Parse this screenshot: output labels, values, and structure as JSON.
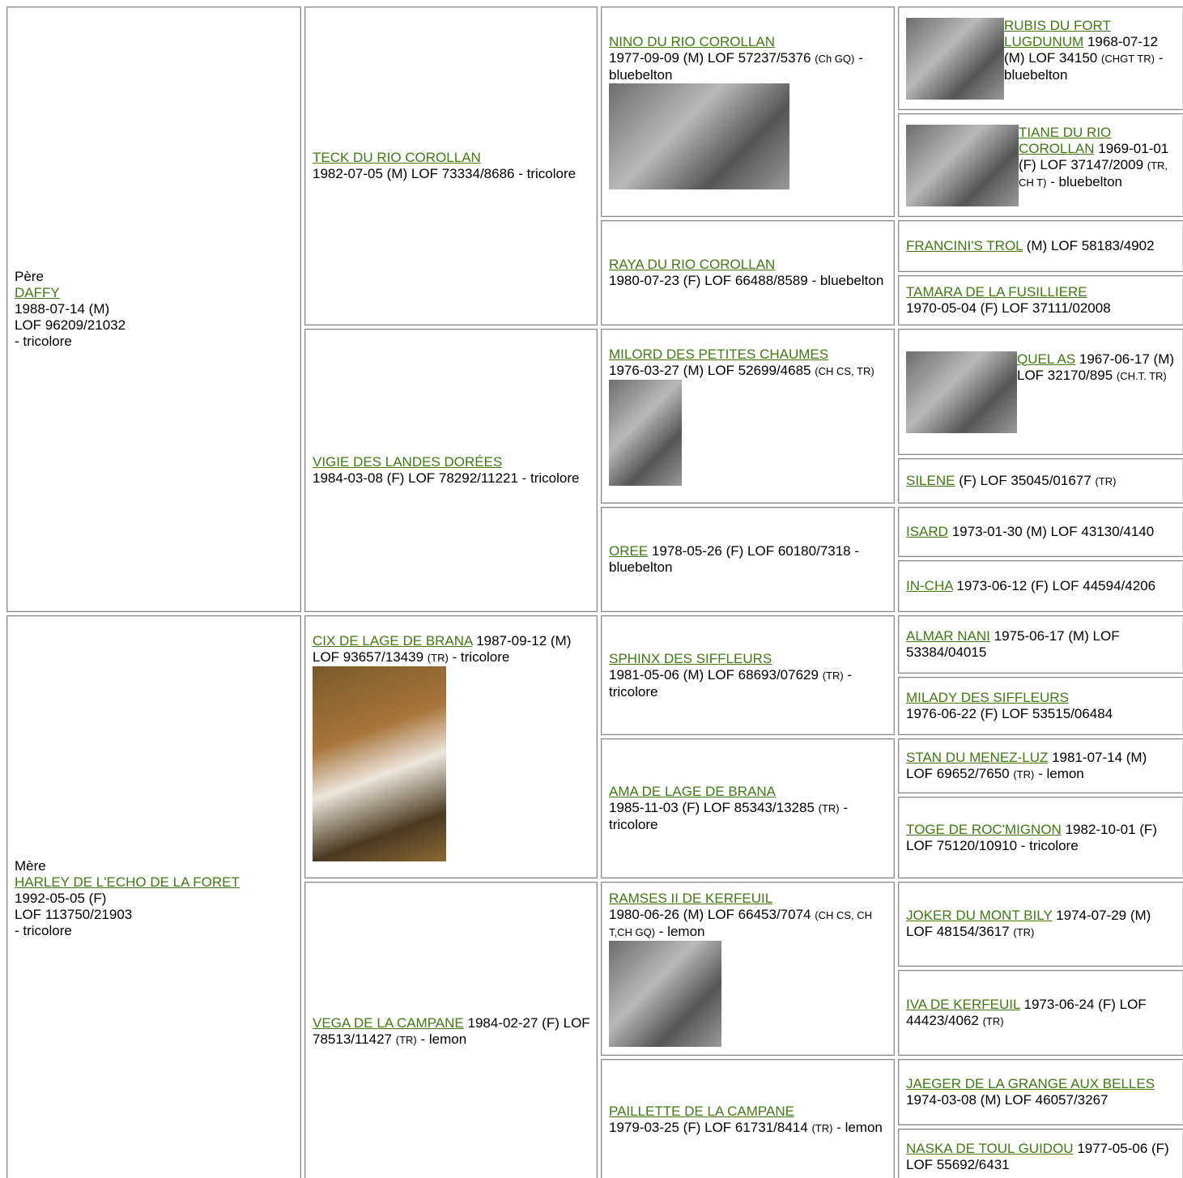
{
  "sire": {
    "label": "Père",
    "name": "DAFFY",
    "lines": [
      "1988-07-14 (M)",
      "LOF 96209/21032",
      "- tricolore"
    ]
  },
  "dam": {
    "label": "Mère",
    "name": "HARLEY DE L'ECHO DE LA FORET",
    "lines": [
      "1992-05-05 (F)",
      "LOF 113750/21903",
      "- tricolore"
    ]
  },
  "grandparents": [
    {
      "name": "TECK DU RIO COROLLAN",
      "info": "1982-07-05 (M) LOF 73334/8686",
      "color": "- tricolore"
    },
    {
      "name": "VIGIE DES LANDES DORÉES",
      "info": "1984-03-08 (F) LOF 78292/11221",
      "color": "- tricolore"
    },
    {
      "name": "CIX DE LAGE DE BRANA",
      "info": "1987-09-12 (M) LOF 93657/13439",
      "titles": "(TR)",
      "color": "- tricolore"
    },
    {
      "name": "VEGA DE LA CAMPANE",
      "info": "1984-02-27 (F) LOF 78513/11427",
      "titles": "(TR)",
      "color": "- lemon"
    }
  ],
  "great_grandparents": [
    {
      "name": "NINO DU RIO COROLLAN",
      "info": "1977-09-09 (M) LOF 57237/5376",
      "titles": "(Ch GQ)",
      "color": "- bluebelton"
    },
    {
      "name": "RAYA DU RIO COROLLAN",
      "info": "1980-07-23 (F) LOF 66488/8589",
      "color": "- bluebelton"
    },
    {
      "name": "MILORD DES PETITES CHAUMES",
      "info": "1976-03-27 (M) LOF 52699/4685",
      "titles": "(CH CS, TR)"
    },
    {
      "name": "OREE",
      "info": "1978-05-26 (F) LOF 60180/7318",
      "color": "- bluebelton"
    },
    {
      "name": "SPHINX DES SIFFLEURS",
      "info": "1981-05-06 (M) LOF 68693/07629",
      "titles": "(TR)",
      "color": "- tricolore"
    },
    {
      "name": "AMA DE LAGE DE BRANA",
      "info": "1985-11-03 (F) LOF 85343/13285",
      "titles": "(TR)",
      "color": "- tricolore"
    },
    {
      "name": "RAMSES II DE KERFEUIL",
      "info": "1980-06-26 (M) LOF 66453/7074",
      "titles": "(CH CS, CH T,CH GQ)",
      "color": "- lemon"
    },
    {
      "name": "PAILLETTE DE LA CAMPANE",
      "info": "1979-03-25 (F) LOF 61731/8414",
      "titles": "(TR)",
      "color": "- lemon"
    }
  ],
  "great_great_grandparents": [
    {
      "name": "RUBIS DU FORT LUGDUNUM",
      "info": "1968-07-12 (M) LOF 34150",
      "titles": "(CHGT TR)",
      "color": "- bluebelton"
    },
    {
      "name": "TIANE DU RIO COROLLAN",
      "info": "1969-01-01 (F) LOF 37147/2009",
      "titles": "(TR, CH T)",
      "color": "- bluebelton"
    },
    {
      "name": "FRANCINI'S TROL",
      "info": "(M) LOF 58183/4902"
    },
    {
      "name": "TAMARA DE LA FUSILLIERE",
      "info": "1970-05-04 (F) LOF 37111/02008"
    },
    {
      "name": "QUEL AS",
      "info": "1967-06-17 (M) LOF 32170/895",
      "titles": "(CH.T. TR)"
    },
    {
      "name": "SILENE",
      "info": "(F) LOF 35045/01677",
      "titles": "(TR)"
    },
    {
      "name": "ISARD",
      "info": "1973-01-30 (M) LOF 43130/4140"
    },
    {
      "name": "IN-CHA",
      "info": "1973-06-12 (F) LOF 44594/4206"
    },
    {
      "name": "ALMAR NANI",
      "info": "1975-06-17 (M) LOF 53384/04015"
    },
    {
      "name": "MILADY DES SIFFLEURS",
      "info": "1976-06-22 (F) LOF 53515/06484"
    },
    {
      "name": "STAN DU MENEZ-LUZ",
      "info": "1981-07-14 (M) LOF 69652/7650",
      "titles": "(TR)",
      "color": "- lemon"
    },
    {
      "name": "TOGE DE ROC'MIGNON",
      "info": "1982-10-01 (F) LOF 75120/10910",
      "color": "- tricolore"
    },
    {
      "name": "JOKER DU MONT BILY",
      "info": "1974-07-29 (M) LOF 48154/3617",
      "titles": "(TR)"
    },
    {
      "name": "IVA DE KERFEUIL",
      "info": "1973-06-24 (F) LOF 44423/4062",
      "titles": "(TR)"
    },
    {
      "name": "JAEGER DE LA GRANGE AUX BELLES",
      "info": "1974-03-08 (M) LOF 46057/3267"
    },
    {
      "name": "NASKA DE TOUL GUIDOU",
      "info": "1977-05-06 (F) LOF 55692/6431"
    }
  ]
}
